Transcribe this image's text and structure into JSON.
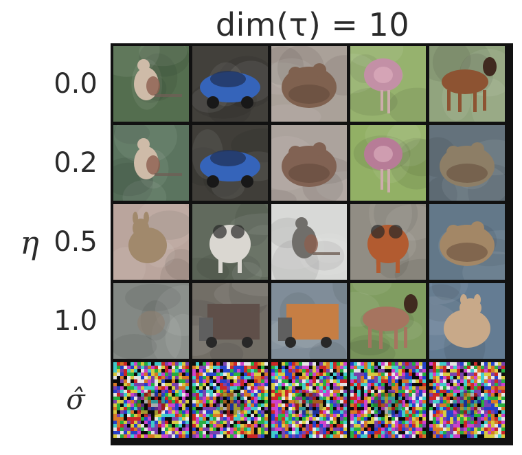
{
  "title": "dim(τ) = 10",
  "y_axis_label": "η",
  "rows": [
    {
      "label": "0.0",
      "cells": [
        {
          "subject": "bird",
          "bg": "#4f6a4a",
          "fg": "#cdb9a6"
        },
        {
          "subject": "car",
          "bg": "#3c3a35",
          "fg": "#2f5fb8"
        },
        {
          "subject": "frog",
          "bg": "#a89e96",
          "fg": "#7b5c4a"
        },
        {
          "subject": "ostrich",
          "bg": "#93b06a",
          "fg": "#c28da4"
        },
        {
          "subject": "horse",
          "bg": "#8ea27a",
          "fg": "#8a4e2c"
        }
      ]
    },
    {
      "label": "0.2",
      "cells": [
        {
          "subject": "bird",
          "bg": "#56705a",
          "fg": "#cdb9a6"
        },
        {
          "subject": "car",
          "bg": "#3a3833",
          "fg": "#2f5fb8"
        },
        {
          "subject": "frog",
          "bg": "#aaa09a",
          "fg": "#7d5d4e"
        },
        {
          "subject": "ostrich",
          "bg": "#8fae60",
          "fg": "#b57894"
        },
        {
          "subject": "frog",
          "bg": "#5f6e78",
          "fg": "#8a7a62"
        }
      ]
    },
    {
      "label": "0.5",
      "cells": [
        {
          "subject": "deer",
          "bg": "#b8a39a",
          "fg": "#9e8668"
        },
        {
          "subject": "dog",
          "bg": "#5c6658",
          "fg": "#d9d6d0"
        },
        {
          "subject": "bird",
          "bg": "#d7d8d6",
          "fg": "#6c6a66"
        },
        {
          "subject": "dog",
          "bg": "#8e8a80",
          "fg": "#b0562a"
        },
        {
          "subject": "frog",
          "bg": "#5e7486",
          "fg": "#a08462"
        }
      ]
    },
    {
      "label": "1.0",
      "cells": [
        {
          "subject": "blur",
          "bg": "#7f8580",
          "fg": "#8a7a6a"
        },
        {
          "subject": "truck",
          "bg": "#6e6a62",
          "fg": "#5a4a44"
        },
        {
          "subject": "truck",
          "bg": "#7c8a96",
          "fg": "#c57a3e"
        },
        {
          "subject": "horse",
          "bg": "#7c9a5c",
          "fg": "#a4705a"
        },
        {
          "subject": "cat",
          "bg": "#5f7890",
          "fg": "#c7a786"
        }
      ]
    },
    {
      "label": "σ̂",
      "cells": [
        {
          "subject": "noise",
          "bg": "#444444",
          "fg": "#888888"
        },
        {
          "subject": "noise",
          "bg": "#555555",
          "fg": "#999999"
        },
        {
          "subject": "noise",
          "bg": "#505050",
          "fg": "#8a8a8a"
        },
        {
          "subject": "noise",
          "bg": "#4a4a4a",
          "fg": "#909090"
        },
        {
          "subject": "noise",
          "bg": "#4e4e4e",
          "fg": "#8e8e8e"
        }
      ]
    }
  ]
}
